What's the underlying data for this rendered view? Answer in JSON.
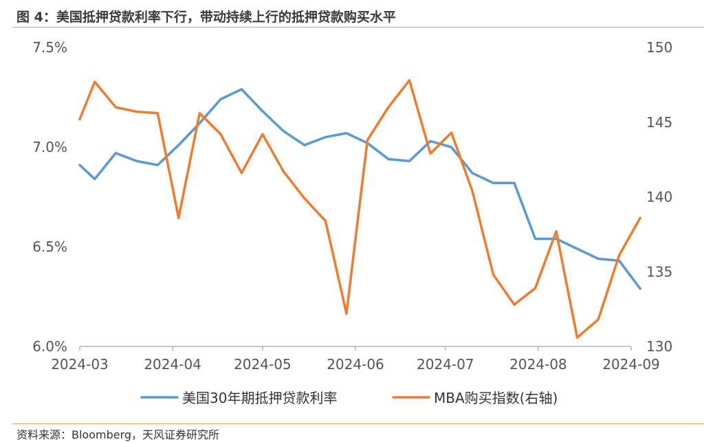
{
  "figure": {
    "title": "图 4：美国抵押贷款利率下行，带动持续上行的抵押贷款购买水平",
    "source": "资料来源：Bloomberg，天风证券研究所"
  },
  "chart_data": {
    "type": "line",
    "title": "",
    "x_ticks": [
      "2024-03",
      "2024-04",
      "2024-05",
      "2024-06",
      "2024-07",
      "2024-08",
      "2024-09"
    ],
    "x_range": [
      "2024-03-01",
      "2024-09-01"
    ],
    "y_left": {
      "range": [
        6.0,
        7.5
      ],
      "ticks": [
        "6.0%",
        "6.5%",
        "7.0%",
        "7.5%"
      ],
      "tick_values": [
        6.0,
        6.5,
        7.0,
        7.5
      ]
    },
    "y_right": {
      "range": [
        130,
        150
      ],
      "ticks": [
        "130",
        "135",
        "140",
        "145",
        "150"
      ],
      "tick_values": [
        130,
        135,
        140,
        145,
        150
      ]
    },
    "grid": false,
    "legend_position": "bottom",
    "series": [
      {
        "name": "美国30年期抵押贷款利率",
        "axis": "left",
        "color": "#5b9bd5",
        "x": [
          "2024-03-01",
          "2024-03-06",
          "2024-03-13",
          "2024-03-20",
          "2024-03-27",
          "2024-04-03",
          "2024-04-10",
          "2024-04-17",
          "2024-04-24",
          "2024-05-01",
          "2024-05-08",
          "2024-05-15",
          "2024-05-22",
          "2024-05-29",
          "2024-06-05",
          "2024-06-12",
          "2024-06-19",
          "2024-06-26",
          "2024-07-03",
          "2024-07-10",
          "2024-07-17",
          "2024-07-24",
          "2024-07-31",
          "2024-08-07",
          "2024-08-14",
          "2024-08-21",
          "2024-08-28",
          "2024-09-04"
        ],
        "values": [
          6.91,
          6.84,
          6.97,
          6.93,
          6.91,
          7.01,
          7.12,
          7.24,
          7.29,
          7.18,
          7.08,
          7.01,
          7.05,
          7.07,
          7.02,
          6.94,
          6.93,
          7.03,
          7.0,
          6.87,
          6.82,
          6.82,
          6.54,
          6.54,
          6.49,
          6.44,
          6.43,
          6.29
        ]
      },
      {
        "name": "MBA购买指数(右轴)",
        "axis": "right",
        "color": "#ed7d31",
        "x": [
          "2024-03-01",
          "2024-03-06",
          "2024-03-13",
          "2024-03-20",
          "2024-03-27",
          "2024-04-03",
          "2024-04-10",
          "2024-04-17",
          "2024-04-24",
          "2024-05-01",
          "2024-05-08",
          "2024-05-15",
          "2024-05-22",
          "2024-05-29",
          "2024-06-05",
          "2024-06-12",
          "2024-06-19",
          "2024-06-26",
          "2024-07-03",
          "2024-07-10",
          "2024-07-17",
          "2024-07-24",
          "2024-07-31",
          "2024-08-07",
          "2024-08-14",
          "2024-08-21",
          "2024-08-28",
          "2024-09-04"
        ],
        "values": [
          145.2,
          147.7,
          146.0,
          145.7,
          145.6,
          138.6,
          145.6,
          144.2,
          141.6,
          144.2,
          141.7,
          139.9,
          138.4,
          132.2,
          143.8,
          146.0,
          147.8,
          142.9,
          144.3,
          140.4,
          134.8,
          132.8,
          133.9,
          137.7,
          130.6,
          131.8,
          136.1,
          138.6
        ]
      }
    ]
  }
}
